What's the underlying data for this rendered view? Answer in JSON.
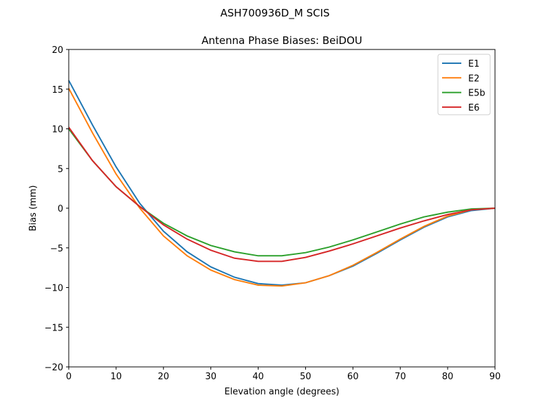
{
  "suptitle": "ASH700936D_M    SCIS",
  "chart_data": {
    "type": "line",
    "title": "Antenna Phase Biases: BeiDOU",
    "xlabel": "Elevation angle (degrees)",
    "ylabel": "Bias (mm)",
    "xlim": [
      0,
      90
    ],
    "ylim": [
      -20,
      20
    ],
    "xticks": [
      0,
      10,
      20,
      30,
      40,
      50,
      60,
      70,
      80,
      90
    ],
    "yticks": [
      -20,
      -15,
      -10,
      -5,
      0,
      5,
      10,
      15,
      20
    ],
    "grid": false,
    "legend_position": "top-right",
    "x": [
      0,
      5,
      10,
      15,
      20,
      25,
      30,
      35,
      40,
      45,
      50,
      55,
      60,
      65,
      70,
      75,
      80,
      85,
      90
    ],
    "series": [
      {
        "name": "E1",
        "color": "#1f77b4",
        "values": [
          16.1,
          10.5,
          5.2,
          0.6,
          -2.9,
          -5.5,
          -7.4,
          -8.7,
          -9.5,
          -9.7,
          -9.4,
          -8.5,
          -7.3,
          -5.7,
          -4.0,
          -2.4,
          -1.1,
          -0.3,
          0
        ]
      },
      {
        "name": "E2",
        "color": "#ff7f0e",
        "values": [
          15.1,
          9.5,
          4.3,
          0.0,
          -3.5,
          -6.0,
          -7.8,
          -9.0,
          -9.7,
          -9.8,
          -9.4,
          -8.5,
          -7.2,
          -5.6,
          -3.9,
          -2.3,
          -1.0,
          -0.2,
          0
        ]
      },
      {
        "name": "E5b",
        "color": "#2ca02c",
        "values": [
          10.0,
          6.0,
          2.7,
          0.2,
          -1.9,
          -3.5,
          -4.7,
          -5.5,
          -6.0,
          -6.0,
          -5.6,
          -4.9,
          -4.0,
          -3.0,
          -2.0,
          -1.1,
          -0.5,
          -0.1,
          0
        ]
      },
      {
        "name": "E6",
        "color": "#d62728",
        "values": [
          10.2,
          6.0,
          2.7,
          0.2,
          -2.1,
          -3.9,
          -5.3,
          -6.3,
          -6.7,
          -6.7,
          -6.2,
          -5.4,
          -4.5,
          -3.5,
          -2.5,
          -1.6,
          -0.8,
          -0.2,
          0
        ]
      }
    ]
  }
}
